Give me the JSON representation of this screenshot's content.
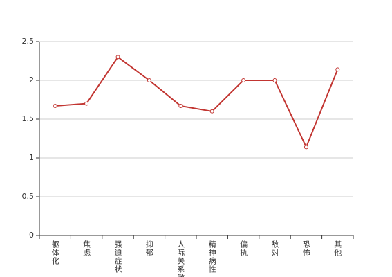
{
  "chart_data": {
    "type": "line",
    "categories": [
      "躯体化",
      "焦虑",
      "强迫症状",
      "抑郁",
      "人际关系敏感",
      "精神病性",
      "偏执",
      "敌对",
      "恐怖",
      "其他"
    ],
    "series": [
      {
        "color": "#c23531",
        "values": [
          1.67,
          1.7,
          2.3,
          2.0,
          1.67,
          1.6,
          2.0,
          2.0,
          1.14,
          2.14
        ]
      }
    ],
    "ylim": [
      0,
      2.5
    ],
    "yticks": [
      0,
      0.5,
      1,
      1.5,
      2,
      2.5
    ],
    "grid": true
  }
}
